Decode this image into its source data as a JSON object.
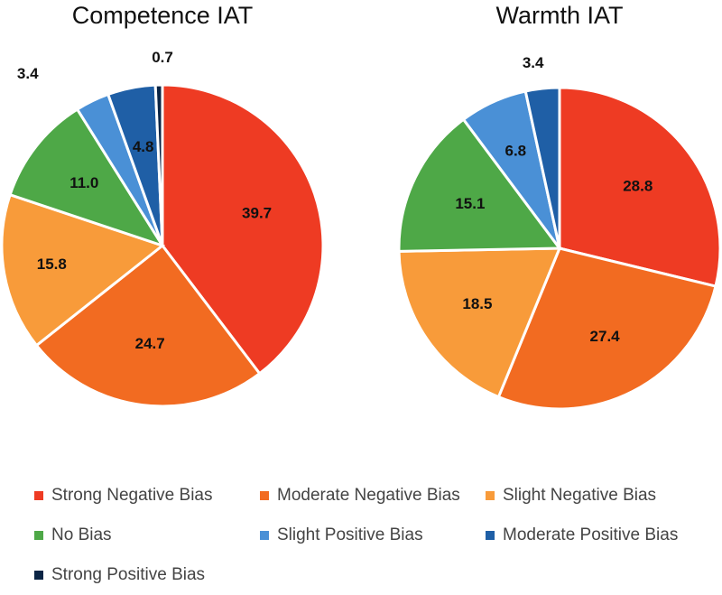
{
  "chart_data": [
    {
      "type": "pie",
      "title": "Competence IAT",
      "categories": [
        "Strong Negative Bias",
        "Moderate Negative Bias",
        "Slight Negative Bias",
        "No Bias",
        "Slight Positive Bias",
        "Moderate Positive Bias",
        "Strong Positive Bias"
      ],
      "values": [
        39.7,
        24.7,
        15.8,
        11.0,
        3.4,
        4.8,
        0.7
      ],
      "labels": [
        "39.7",
        "24.7",
        "15.8",
        "11.0",
        "3.4",
        "4.8",
        "0.7"
      ]
    },
    {
      "type": "pie",
      "title": "Warmth IAT",
      "categories": [
        "Strong Negative Bias",
        "Moderate Negative Bias",
        "Slight Negative Bias",
        "No Bias",
        "Slight Positive Bias",
        "Moderate Positive Bias"
      ],
      "values": [
        28.8,
        27.4,
        18.5,
        15.1,
        6.8,
        3.4
      ],
      "labels": [
        "28.8",
        "27.4",
        "18.5",
        "15.1",
        "6.8",
        "3.4"
      ]
    }
  ],
  "legend": [
    {
      "label": "Strong Negative Bias",
      "color": "#EE3B23"
    },
    {
      "label": "Moderate Negative Bias",
      "color": "#F26B21"
    },
    {
      "label": "Slight Negative Bias",
      "color": "#F89B3A"
    },
    {
      "label": "No Bias",
      "color": "#4EA847"
    },
    {
      "label": "Slight Positive Bias",
      "color": "#4A90D6"
    },
    {
      "label": "Moderate Positive Bias",
      "color": "#1F5FA6"
    },
    {
      "label": "Strong Positive Bias",
      "color": "#0B2545"
    }
  ]
}
